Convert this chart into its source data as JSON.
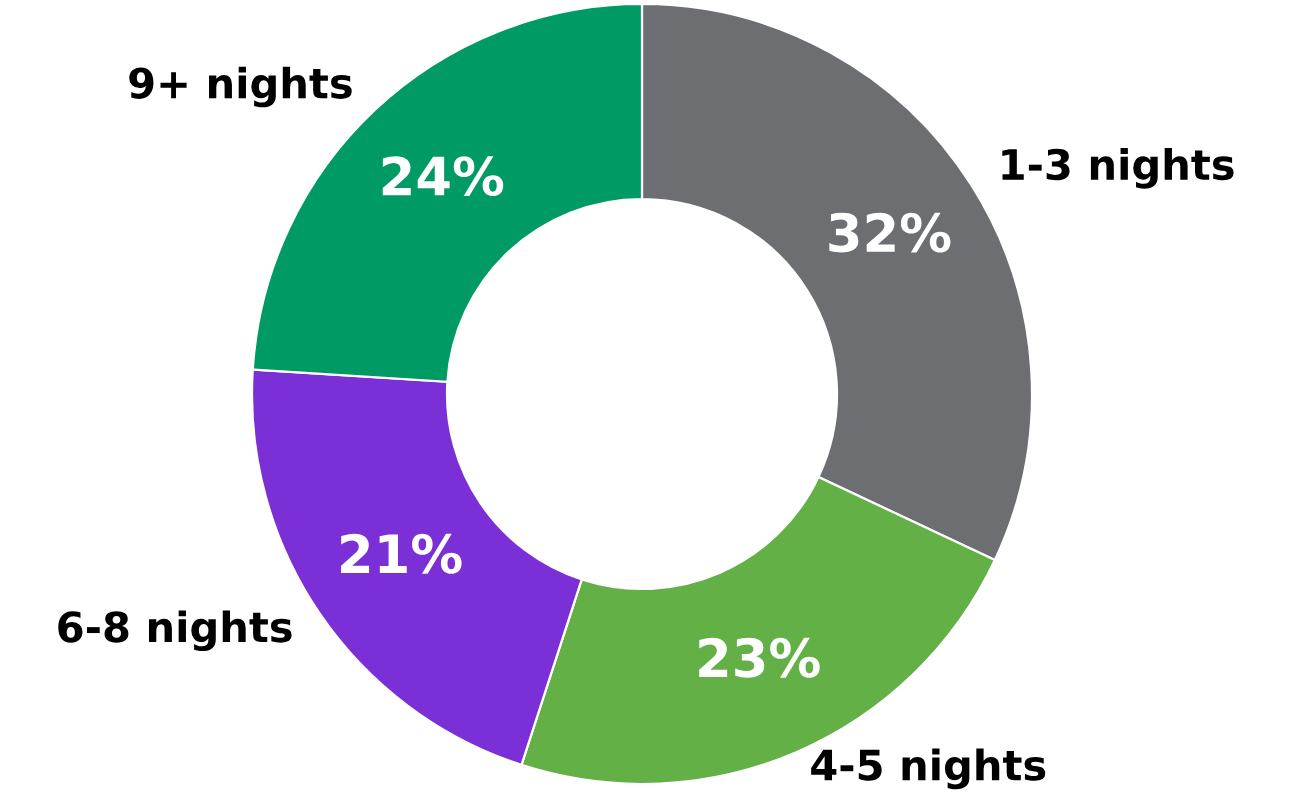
{
  "chart_data": {
    "type": "donut",
    "categories": [
      "1-3 nights",
      "4-5 nights",
      "6-8 nights",
      "9+ nights"
    ],
    "values": [
      32,
      23,
      21,
      24
    ],
    "value_labels": [
      "32%",
      "23%",
      "21%",
      "24%"
    ],
    "colors": [
      "#6d6e71",
      "#62b046",
      "#7b2fd6",
      "#009b65"
    ],
    "legend": false
  }
}
